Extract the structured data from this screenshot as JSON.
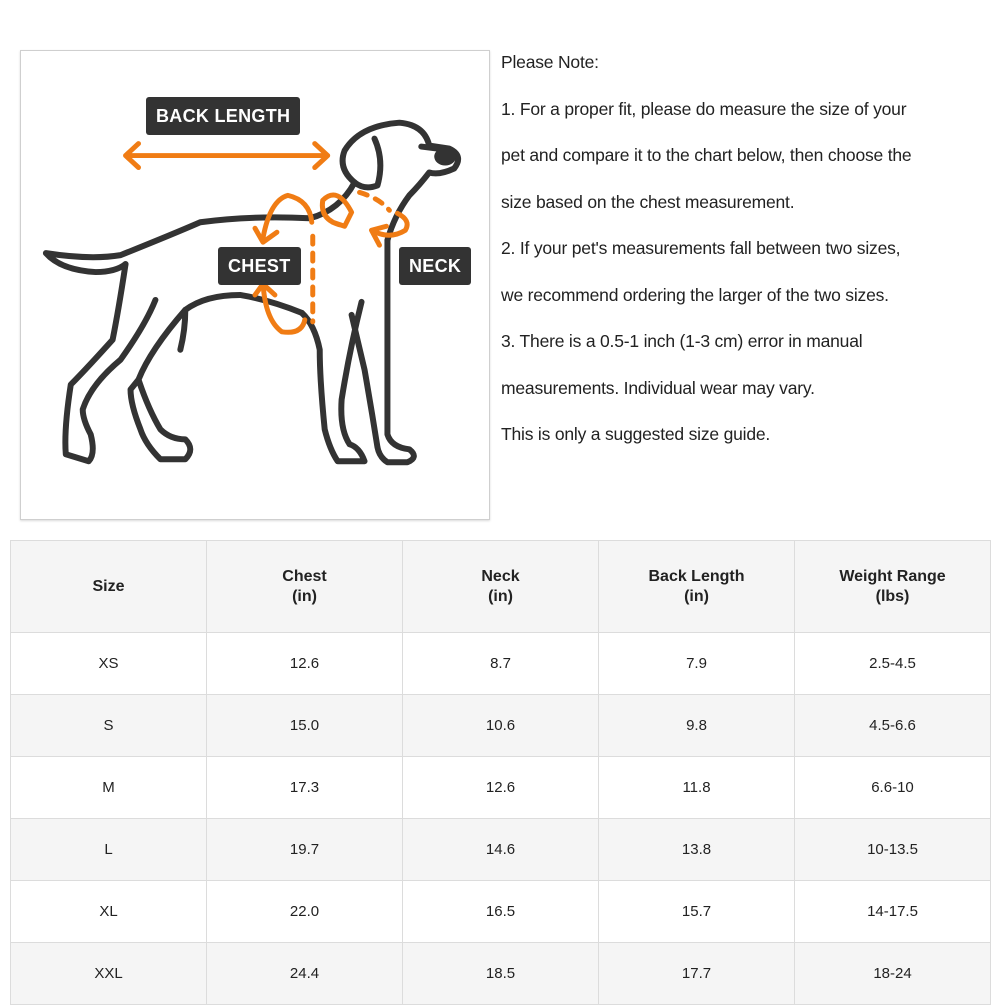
{
  "diagram": {
    "labels": {
      "back_length": "BACK LENGTH",
      "chest": "CHEST",
      "neck": "NECK"
    },
    "colors": {
      "outline": "#333333",
      "arrow": "#f07c14",
      "tag_bg": "#333333"
    }
  },
  "notes": {
    "lines": [
      "Please Note:",
      "1. For a proper fit, please do measure the size of your",
      "pet and compare it to the chart below, then choose the",
      "size based on the chest measurement.",
      "2. If your pet's measurements fall between two sizes,",
      "we recommend ordering the larger of the two sizes.",
      "3. There is a 0.5-1 inch (1-3 cm) error in manual",
      "measurements. Individual wear may vary.",
      "This is only a suggested size guide."
    ]
  },
  "size_table": {
    "headers": [
      {
        "name": "Size",
        "unit": ""
      },
      {
        "name": "Chest",
        "unit": "(in)"
      },
      {
        "name": "Neck",
        "unit": "(in)"
      },
      {
        "name": "Back Length",
        "unit": "(in)"
      },
      {
        "name": "Weight Range",
        "unit": "(lbs)"
      }
    ],
    "rows": [
      [
        "XS",
        "12.6",
        "8.7",
        "7.9",
        "2.5-4.5"
      ],
      [
        "S",
        "15.0",
        "10.6",
        "9.8",
        "4.5-6.6"
      ],
      [
        "M",
        "17.3",
        "12.6",
        "11.8",
        "6.6-10"
      ],
      [
        "L",
        "19.7",
        "14.6",
        "13.8",
        "10-13.5"
      ],
      [
        "XL",
        "22.0",
        "16.5",
        "15.7",
        "14-17.5"
      ],
      [
        "XXL",
        "24.4",
        "18.5",
        "17.7",
        "18-24"
      ]
    ]
  }
}
